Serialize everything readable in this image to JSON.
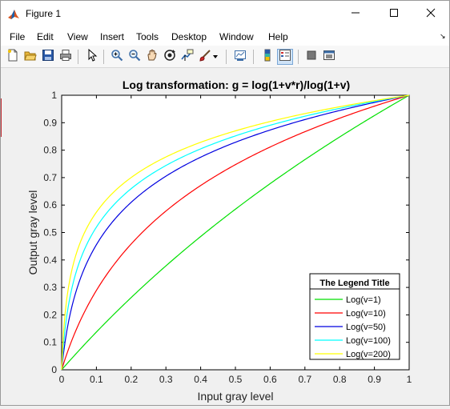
{
  "window": {
    "title": "Figure 1",
    "controls": [
      "minimize-icon",
      "maximize-icon",
      "close-icon"
    ]
  },
  "menu": {
    "items": [
      "File",
      "Edit",
      "View",
      "Insert",
      "Tools",
      "Desktop",
      "Window",
      "Help"
    ]
  },
  "toolbar": {
    "buttons": [
      "new-figure-icon",
      "open-file-icon",
      "save-icon",
      "print-icon",
      "edit-plot-arrow-icon",
      "zoom-in-icon",
      "zoom-out-icon",
      "pan-hand-icon",
      "rotate-3d-icon",
      "data-cursor-icon",
      "brush-icon",
      "brush-dropdown-icon",
      "link-plot-icon",
      "insert-colorbar-icon",
      "insert-legend-icon",
      "hide-plot-tools-icon",
      "show-plot-tools-icon"
    ]
  },
  "colors": {
    "v1": "#00e000",
    "v10": "#ff0000",
    "v50": "#0000e0",
    "v100": "#00ffff",
    "v200": "#ffff00"
  },
  "chart_data": {
    "type": "line",
    "title": "Log transformation: g = log(1+v*r)/log(1+v)",
    "xlabel": "Input gray level",
    "ylabel": "Output gray level",
    "xlim": [
      0,
      1
    ],
    "ylim": [
      0,
      1
    ],
    "xticks": [
      "0",
      "0.1",
      "0.2",
      "0.3",
      "0.4",
      "0.5",
      "0.6",
      "0.7",
      "0.8",
      "0.9",
      "1"
    ],
    "yticks": [
      "0",
      "0.1",
      "0.2",
      "0.3",
      "0.4",
      "0.5",
      "0.6",
      "0.7",
      "0.8",
      "0.9",
      "1"
    ],
    "grid": false,
    "legend": {
      "title": "The Legend Title",
      "placement": "bottom-right"
    },
    "formula": "g = log(1+v*r)/log(1+v)",
    "series": [
      {
        "name": "Log(v=1)",
        "v": 1,
        "color": "#00e000"
      },
      {
        "name": "Log(v=10)",
        "v": 10,
        "color": "#ff0000"
      },
      {
        "name": "Log(v=50)",
        "v": 50,
        "color": "#0000e0"
      },
      {
        "name": "Log(v=100)",
        "v": 100,
        "color": "#00ffff"
      },
      {
        "name": "Log(v=200)",
        "v": 200,
        "color": "#ffff00"
      }
    ]
  }
}
